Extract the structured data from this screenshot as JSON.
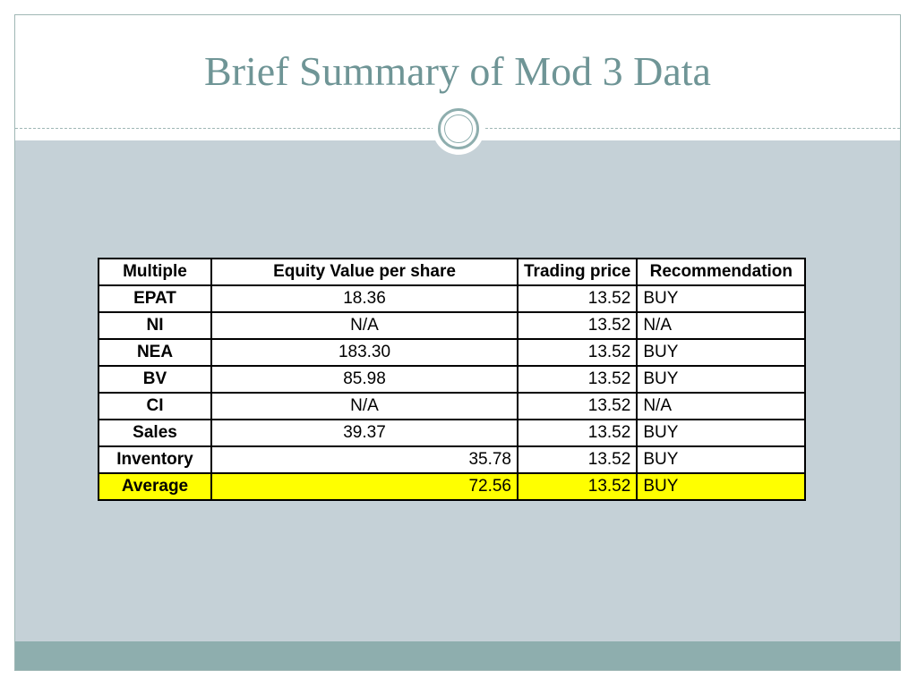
{
  "slide": {
    "title": "Brief Summary of Mod 3 Data"
  },
  "table": {
    "headers": [
      "Multiple",
      "Equity Value per share",
      "Trading price",
      "Recommendation"
    ],
    "rows": [
      {
        "multiple": "EPAT",
        "equity_value": "18.36",
        "trading_price": "13.52",
        "recommendation": "BUY"
      },
      {
        "multiple": "NI",
        "equity_value": "N/A",
        "trading_price": "13.52",
        "recommendation": "N/A"
      },
      {
        "multiple": "NEA",
        "equity_value": "183.30",
        "trading_price": "13.52",
        "recommendation": "BUY"
      },
      {
        "multiple": "BV",
        "equity_value": "85.98",
        "trading_price": "13.52",
        "recommendation": "BUY"
      },
      {
        "multiple": "CI",
        "equity_value": "N/A",
        "trading_price": "13.52",
        "recommendation": "N/A"
      },
      {
        "multiple": "Sales",
        "equity_value": "39.37",
        "trading_price": "13.52",
        "recommendation": "BUY"
      },
      {
        "multiple": "Inventory",
        "equity_value": "35.78",
        "trading_price": "13.52",
        "recommendation": "BUY"
      }
    ],
    "average": {
      "multiple": "Average",
      "equity_value": "72.56",
      "trading_price": "13.52",
      "recommendation": "BUY"
    }
  },
  "colors": {
    "title": "#6f9596",
    "content_background": "#c5d1d7",
    "footer": "#8eaeae",
    "average_highlight": "#ffff00"
  }
}
